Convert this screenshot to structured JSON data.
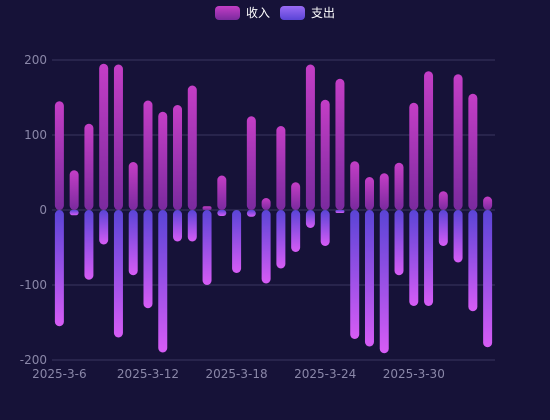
{
  "chart_data": {
    "type": "bar",
    "legend": {
      "position": "top-center",
      "entries": [
        {
          "name": "收入",
          "color": "#c43ec6"
        },
        {
          "name": "支出",
          "color": "#8a5cf5"
        }
      ]
    },
    "ylim": [
      -200,
      200
    ],
    "yticks": [
      200,
      100,
      0,
      -100,
      -200
    ],
    "grid": true,
    "x_tick_labels": [
      "2025-3-6",
      "2025-3-12",
      "2025-3-18",
      "2025-3-24",
      "2025-3-30"
    ],
    "x_tick_indices": [
      0,
      6,
      12,
      18,
      24
    ],
    "series": [
      {
        "name": "收入",
        "values": [
          145,
          53,
          115,
          195,
          194,
          64,
          146,
          131,
          140,
          166,
          5,
          46,
          0,
          125,
          16,
          112,
          37,
          194,
          147,
          175,
          65,
          44,
          49,
          63,
          143,
          185,
          25,
          181,
          155,
          18
        ]
      },
      {
        "name": "支出",
        "values": [
          -155,
          -7,
          -93,
          -46,
          -170,
          -87,
          -131,
          -190,
          -42,
          -42,
          -100,
          -8,
          -84,
          -9,
          -98,
          -78,
          -56,
          -24,
          -48,
          -4,
          -172,
          -182,
          -191,
          -87,
          -128,
          -128,
          -48,
          -70,
          -135,
          -183
        ]
      }
    ],
    "colors": {
      "income_top": "#c43ec6",
      "income_bottom": "#7a2a9e",
      "expense_top": "#5a44d6",
      "expense_bottom": "#d65cf5",
      "grid": "#3a3760",
      "axis": "#8a87a8"
    }
  }
}
